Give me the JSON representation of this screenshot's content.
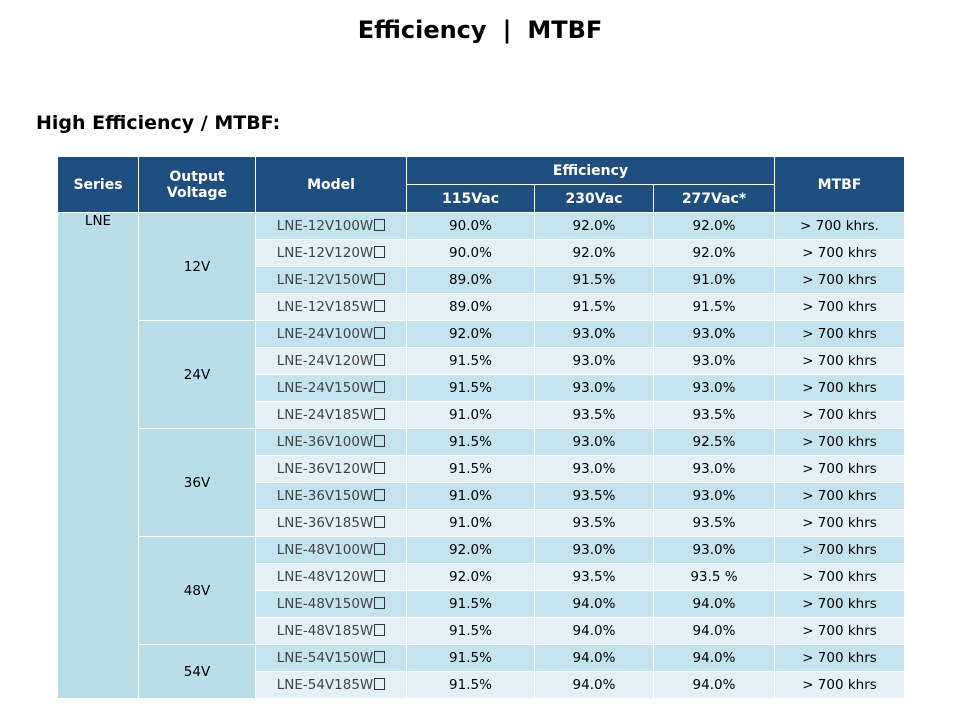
{
  "page": {
    "title_left": "Efficiency",
    "title_sep": "|",
    "title_right": "MTBF",
    "subtitle": "High Efficiency / MTBF:"
  },
  "table": {
    "headers": {
      "series": "Series",
      "output_voltage": "Output Voltage",
      "model": "Model",
      "efficiency": "Efficiency",
      "mtbf": "MTBF",
      "v115": "115Vac",
      "v230": "230Vac",
      "v277": "277Vac*"
    },
    "series": "LNE",
    "groups": [
      {
        "voltage": "12V",
        "rows": [
          {
            "model": "LNE-12V100W",
            "e115": "90.0%",
            "e230": "92.0%",
            "e277": "92.0%",
            "mtbf": "> 700 khrs."
          },
          {
            "model": "LNE-12V120W",
            "e115": "90.0%",
            "e230": "92.0%",
            "e277": "92.0%",
            "mtbf": "> 700 khrs"
          },
          {
            "model": "LNE-12V150W",
            "e115": "89.0%",
            "e230": "91.5%",
            "e277": "91.0%",
            "mtbf": "> 700 khrs"
          },
          {
            "model": "LNE-12V185W",
            "e115": "89.0%",
            "e230": "91.5%",
            "e277": "91.5%",
            "mtbf": "> 700 khrs"
          }
        ]
      },
      {
        "voltage": "24V",
        "rows": [
          {
            "model": "LNE-24V100W",
            "e115": "92.0%",
            "e230": "93.0%",
            "e277": "93.0%",
            "mtbf": "> 700 khrs"
          },
          {
            "model": "LNE-24V120W",
            "e115": "91.5%",
            "e230": "93.0%",
            "e277": "93.0%",
            "mtbf": "> 700 khrs"
          },
          {
            "model": "LNE-24V150W",
            "e115": "91.5%",
            "e230": "93.0%",
            "e277": "93.0%",
            "mtbf": "> 700 khrs"
          },
          {
            "model": "LNE-24V185W",
            "e115": "91.0%",
            "e230": "93.5%",
            "e277": "93.5%",
            "mtbf": "> 700 khrs"
          }
        ]
      },
      {
        "voltage": "36V",
        "rows": [
          {
            "model": "LNE-36V100W",
            "e115": "91.5%",
            "e230": "93.0%",
            "e277": "92.5%",
            "mtbf": "> 700 khrs"
          },
          {
            "model": "LNE-36V120W",
            "e115": "91.5%",
            "e230": "93.0%",
            "e277": "93.0%",
            "mtbf": "> 700 khrs"
          },
          {
            "model": "LNE-36V150W",
            "e115": "91.0%",
            "e230": "93.5%",
            "e277": "93.0%",
            "mtbf": "> 700 khrs"
          },
          {
            "model": "LNE-36V185W",
            "e115": "91.0%",
            "e230": "93.5%",
            "e277": "93.5%",
            "mtbf": "> 700 khrs"
          }
        ]
      },
      {
        "voltage": "48V",
        "rows": [
          {
            "model": "LNE-48V100W",
            "e115": "92.0%",
            "e230": "93.0%",
            "e277": "93.0%",
            "mtbf": "> 700 khrs"
          },
          {
            "model": "LNE-48V120W",
            "e115": "92.0%",
            "e230": "93.5%",
            "e277": "93.5 %",
            "mtbf": "> 700 khrs"
          },
          {
            "model": "LNE-48V150W",
            "e115": "91.5%",
            "e230": "94.0%",
            "e277": "94.0%",
            "mtbf": "> 700 khrs"
          },
          {
            "model": "LNE-48V185W",
            "e115": "91.5%",
            "e230": "94.0%",
            "e277": "94.0%",
            "mtbf": "> 700 khrs"
          }
        ]
      },
      {
        "voltage": "54V",
        "rows": [
          {
            "model": "LNE-54V150W",
            "e115": "91.5%",
            "e230": "94.0%",
            "e277": "94.0%",
            "mtbf": "> 700 khrs"
          },
          {
            "model": "LNE-54V185W",
            "e115": "91.5%",
            "e230": "94.0%",
            "e277": "94.0%",
            "mtbf": "> 700 khrs"
          }
        ]
      }
    ]
  }
}
